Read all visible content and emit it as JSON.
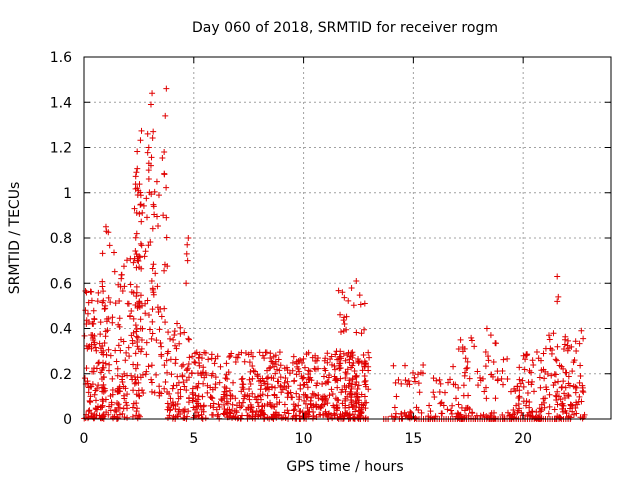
{
  "chart_data": {
    "type": "scatter",
    "title": "Day 060 of 2018, SRMTID for receiver rogm",
    "xlabel": "GPS time / hours",
    "ylabel": "SRMTID / TECUs",
    "xlim": [
      0,
      24
    ],
    "ylim": [
      0,
      1.6
    ],
    "xticks": [
      0,
      5,
      10,
      15,
      20
    ],
    "yticks": [
      0,
      0.2,
      0.4,
      0.6,
      0.8,
      1,
      1.2,
      1.4,
      1.6
    ],
    "xtick_labels": [
      "0",
      "5",
      "10",
      "15",
      "20"
    ],
    "ytick_labels": [
      "0",
      "0.2",
      "0.4",
      "0.6",
      "0.8",
      "1",
      "1.2",
      "1.4",
      "1.6"
    ],
    "grid": true,
    "marker": "+",
    "color": "#e00000",
    "clusters": [
      {
        "x": [
          0.0,
          1.0
        ],
        "y": [
          0.0,
          0.62
        ],
        "n": 110,
        "skew": 1.6
      },
      {
        "x": [
          0.8,
          1.5
        ],
        "y": [
          0.0,
          0.86
        ],
        "n": 60,
        "skew": 1.8
      },
      {
        "x": [
          1.5,
          2.6
        ],
        "y": [
          0.0,
          0.72
        ],
        "n": 110,
        "skew": 1.4
      },
      {
        "x": [
          2.3,
          3.2
        ],
        "y": [
          0.1,
          1.3
        ],
        "n": 95,
        "skew": 1.2
      },
      {
        "x": [
          3.2,
          3.8
        ],
        "y": [
          0.1,
          1.18
        ],
        "n": 40,
        "skew": 1.5
      },
      {
        "x": [
          3.8,
          4.8
        ],
        "y": [
          0.0,
          0.45
        ],
        "n": 80,
        "skew": 1.6
      },
      {
        "x": [
          4.9,
          13.0
        ],
        "y": [
          0.0,
          0.3
        ],
        "n": 620,
        "skew": 1.5
      },
      {
        "x": [
          11.5,
          12.8
        ],
        "y": [
          0.0,
          0.6
        ],
        "n": 70,
        "skew": 1.6
      },
      {
        "x": [
          14.0,
          17.5
        ],
        "y": [
          0.0,
          0.25
        ],
        "n": 90,
        "skew": 2.0
      },
      {
        "x": [
          17.0,
          19.2
        ],
        "y": [
          0.0,
          0.38
        ],
        "n": 70,
        "skew": 1.8
      },
      {
        "x": [
          19.2,
          21.0
        ],
        "y": [
          0.0,
          0.3
        ],
        "n": 90,
        "skew": 1.6
      },
      {
        "x": [
          21.0,
          22.8
        ],
        "y": [
          0.0,
          0.38
        ],
        "n": 110,
        "skew": 1.4
      }
    ],
    "zero_runs": [
      {
        "x": [
          13.6,
          13.9
        ],
        "n": 3
      },
      {
        "x": [
          15.0,
          22.2
        ],
        "n": 70
      }
    ],
    "highlight_points": [
      {
        "x": 3.1,
        "y": 1.44
      },
      {
        "x": 3.05,
        "y": 1.39
      },
      {
        "x": 3.75,
        "y": 1.46
      },
      {
        "x": 3.7,
        "y": 1.34
      },
      {
        "x": 3.15,
        "y": 1.27
      },
      {
        "x": 2.9,
        "y": 1.26
      },
      {
        "x": 2.95,
        "y": 1.2
      },
      {
        "x": 3.65,
        "y": 1.18
      },
      {
        "x": 3.05,
        "y": 1.12
      },
      {
        "x": 2.95,
        "y": 1.1
      },
      {
        "x": 2.45,
        "y": 0.99
      },
      {
        "x": 2.3,
        "y": 0.93
      },
      {
        "x": 3.75,
        "y": 0.89
      },
      {
        "x": 1.0,
        "y": 0.85
      },
      {
        "x": 1.02,
        "y": 0.83
      },
      {
        "x": 4.75,
        "y": 0.8
      },
      {
        "x": 4.7,
        "y": 0.77
      },
      {
        "x": 4.68,
        "y": 0.73
      },
      {
        "x": 4.72,
        "y": 0.7
      },
      {
        "x": 4.65,
        "y": 0.6
      },
      {
        "x": 12.4,
        "y": 0.61
      },
      {
        "x": 21.55,
        "y": 0.63
      },
      {
        "x": 21.6,
        "y": 0.54
      },
      {
        "x": 21.55,
        "y": 0.52
      },
      {
        "x": 18.35,
        "y": 0.4
      },
      {
        "x": 17.15,
        "y": 0.35
      },
      {
        "x": 22.65,
        "y": 0.39
      }
    ]
  }
}
